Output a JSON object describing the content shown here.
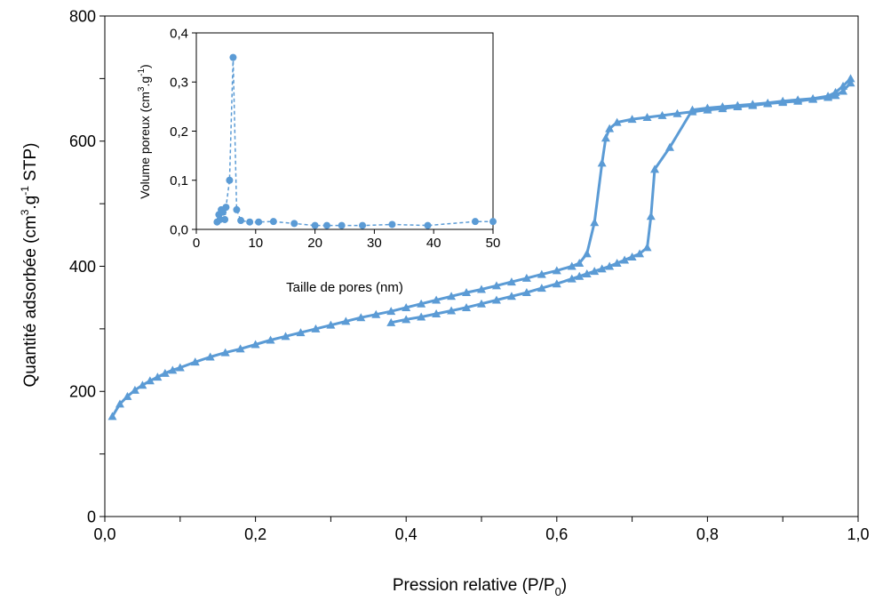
{
  "chart_data": [
    {
      "type": "line",
      "role": "main",
      "xlabel_text": "Pression relative (P/P",
      "xlabel_sub": "0",
      "xlabel_tail": ")",
      "ylabel_text": "Quantité adsorbée (cm",
      "ylabel_sup1": "3",
      "ylabel_mid": ".g",
      "ylabel_sup2": "-1",
      "ylabel_tail": " STP)",
      "xlim": [
        0,
        1
      ],
      "ylim": [
        0,
        800
      ],
      "x_ticks": [
        "0,0",
        "0,2",
        "0,4",
        "0,6",
        "0,8",
        "1,0"
      ],
      "x_tick_values": [
        0,
        0.2,
        0.4,
        0.6,
        0.8,
        1.0
      ],
      "x_minor_step": 0.1,
      "y_ticks": [
        "0",
        "200",
        "400",
        "600",
        "800"
      ],
      "y_tick_values": [
        0,
        200,
        400,
        600,
        800
      ],
      "y_minor_step": 100,
      "grid": false,
      "marker": "triangle",
      "color": "#5b9bd5",
      "series": [
        {
          "x": [
            0.01,
            0.02,
            0.03,
            0.04,
            0.05,
            0.06,
            0.07,
            0.08,
            0.09,
            0.1,
            0.12,
            0.14,
            0.16,
            0.18,
            0.2,
            0.22,
            0.24,
            0.26,
            0.28,
            0.3,
            0.32,
            0.34,
            0.36,
            0.38,
            0.4,
            0.42,
            0.44,
            0.46,
            0.48,
            0.5,
            0.52,
            0.54,
            0.56,
            0.58,
            0.6,
            0.62,
            0.63,
            0.64,
            0.65,
            0.66,
            0.665,
            0.67,
            0.68,
            0.7,
            0.72,
            0.74,
            0.76,
            0.78,
            0.8,
            0.82,
            0.84,
            0.86,
            0.88,
            0.9,
            0.92,
            0.94,
            0.96,
            0.97,
            0.98,
            0.99
          ],
          "y": [
            160,
            180,
            192,
            202,
            210,
            217,
            223,
            229,
            234,
            238,
            247,
            255,
            262,
            268,
            275,
            282,
            288,
            294,
            300,
            306,
            312,
            318,
            323,
            328,
            334,
            340,
            346,
            352,
            358,
            363,
            369,
            375,
            381,
            387,
            393,
            400,
            405,
            420,
            470,
            565,
            605,
            620,
            630,
            635,
            638,
            641,
            644,
            647,
            650,
            652,
            655,
            657,
            660,
            662,
            664,
            667,
            670,
            673,
            680,
            693
          ]
        },
        {
          "x": [
            0.99,
            0.98,
            0.97,
            0.96,
            0.94,
            0.92,
            0.9,
            0.88,
            0.86,
            0.84,
            0.82,
            0.8,
            0.78,
            0.75,
            0.73,
            0.725,
            0.72,
            0.71,
            0.7,
            0.69,
            0.68,
            0.67,
            0.66,
            0.65,
            0.64,
            0.63,
            0.62,
            0.6,
            0.58,
            0.56,
            0.54,
            0.52,
            0.5,
            0.48,
            0.46,
            0.44,
            0.42,
            0.4,
            0.38
          ],
          "y": [
            700,
            688,
            678,
            672,
            668,
            666,
            664,
            661,
            659,
            657,
            655,
            653,
            650,
            590,
            555,
            480,
            430,
            420,
            415,
            410,
            405,
            400,
            396,
            392,
            388,
            384,
            380,
            372,
            365,
            358,
            352,
            346,
            340,
            334,
            329,
            324,
            319,
            315,
            310
          ]
        }
      ]
    },
    {
      "type": "scatter",
      "role": "inset",
      "xlabel": "Taille de pores (nm)",
      "ylabel_text": "Volume poreux (cm",
      "ylabel_sup1": "3",
      "ylabel_mid": ".g",
      "ylabel_sup2": "-1",
      "ylabel_tail": ")",
      "xlim": [
        0,
        50
      ],
      "ylim": [
        0,
        0.4
      ],
      "x_ticks": [
        "0",
        "10",
        "20",
        "30",
        "40",
        "50"
      ],
      "x_tick_values": [
        0,
        10,
        20,
        30,
        40,
        50
      ],
      "y_ticks": [
        "0,0",
        "0,1",
        "0,2",
        "0,3",
        "0,4"
      ],
      "y_tick_values": [
        0,
        0.1,
        0.2,
        0.3,
        0.4
      ],
      "grid": false,
      "marker": "circle",
      "line_style": "dashed",
      "color": "#5b9bd5",
      "series": [
        {
          "x": [
            3.5,
            3.8,
            4.0,
            4.2,
            4.5,
            4.8,
            5.0,
            5.6,
            6.2,
            6.8,
            7.5,
            9.0,
            10.5,
            13.0,
            16.5,
            20.0,
            22.0,
            24.5,
            28.0,
            33.0,
            39.0,
            47.0,
            50.0
          ],
          "y": [
            0.015,
            0.03,
            0.02,
            0.04,
            0.035,
            0.02,
            0.045,
            0.1,
            0.35,
            0.04,
            0.018,
            0.015,
            0.015,
            0.016,
            0.012,
            0.008,
            0.008,
            0.008,
            0.008,
            0.01,
            0.008,
            0.016,
            0.016
          ]
        }
      ]
    }
  ]
}
